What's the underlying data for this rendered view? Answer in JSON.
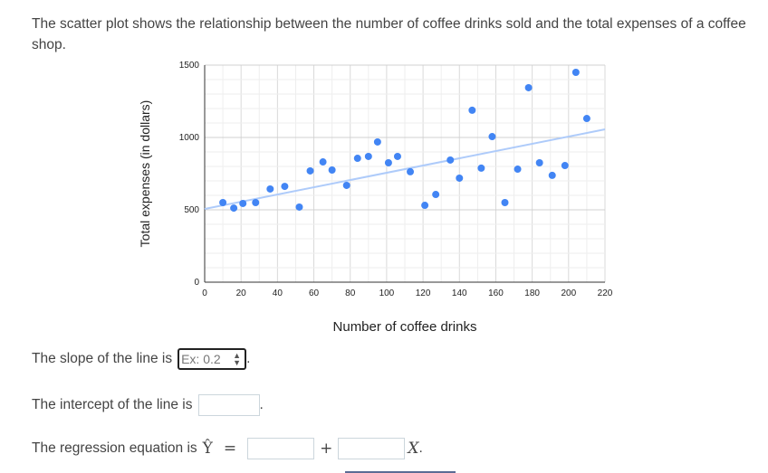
{
  "intro": "The scatter plot shows the relationship between the number of coffee drinks sold and the total expenses of a coffee shop.",
  "questions": {
    "slope_label": "The slope of the line is",
    "slope_placeholder": "Ex: 0.2",
    "intercept_label": "The intercept of the line is",
    "regression_label": "The regression equation is",
    "y_hat": "Ŷ",
    "equals": "=",
    "plus": "+",
    "x_var": "X",
    "period": "."
  },
  "colors": {
    "point": "#4285f4",
    "trendline": "#aecbfa",
    "grid": "#e6e6e6"
  },
  "chart_data": {
    "type": "scatter",
    "title": "",
    "xlabel": "Number of coffee drinks",
    "ylabel": "Total expenses (in dollars)",
    "xlim": [
      0,
      220
    ],
    "ylim": [
      0,
      1500
    ],
    "xticks": [
      0,
      20,
      40,
      60,
      80,
      100,
      120,
      140,
      160,
      180,
      200,
      220
    ],
    "yticks": [
      0,
      500,
      1000,
      1500
    ],
    "grid": true,
    "legend": "none",
    "points": [
      [
        10,
        550
      ],
      [
        16,
        512
      ],
      [
        21,
        544
      ],
      [
        28,
        550
      ],
      [
        36,
        644
      ],
      [
        44,
        662
      ],
      [
        52,
        519
      ],
      [
        58,
        769
      ],
      [
        65,
        831
      ],
      [
        70,
        775
      ],
      [
        78,
        669
      ],
      [
        84,
        856
      ],
      [
        90,
        869
      ],
      [
        95,
        969
      ],
      [
        101,
        825
      ],
      [
        106,
        869
      ],
      [
        113,
        763
      ],
      [
        121,
        531
      ],
      [
        127,
        606
      ],
      [
        135,
        844
      ],
      [
        140,
        719
      ],
      [
        147,
        1188
      ],
      [
        152,
        788
      ],
      [
        158,
        1006
      ],
      [
        165,
        550
      ],
      [
        172,
        781
      ],
      [
        178,
        1344
      ],
      [
        184,
        825
      ],
      [
        191,
        738
      ],
      [
        198,
        806
      ],
      [
        204,
        1450
      ],
      [
        210,
        1131
      ]
    ],
    "trendline": {
      "x": [
        0,
        220
      ],
      "y": [
        506,
        1056
      ]
    }
  }
}
